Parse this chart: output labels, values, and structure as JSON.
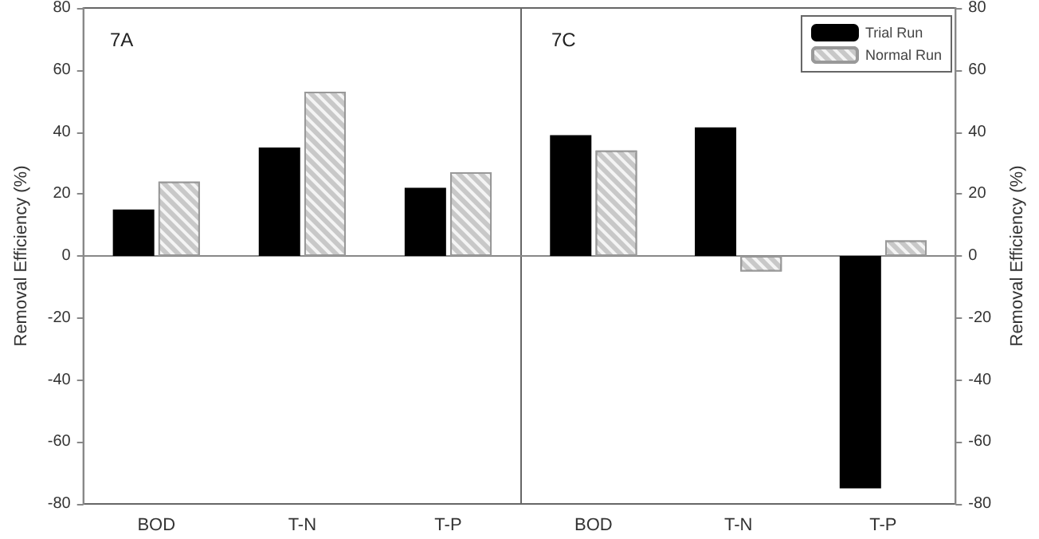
{
  "chart_data": [
    {
      "type": "bar",
      "title": "7A",
      "categories": [
        "BOD",
        "T-N",
        "T-P"
      ],
      "ylabel": "Removal Efficiency (%)",
      "ylim": [
        -80,
        80
      ],
      "yticks": [
        -80,
        -60,
        -40,
        -20,
        0,
        20,
        40,
        60,
        80
      ],
      "series": [
        {
          "color": "#000000",
          "values": [
            15,
            35,
            22
          ]
        },
        {
          "color": "#c8c8c8",
          "values": [
            24,
            53,
            27
          ]
        }
      ]
    },
    {
      "type": "bar",
      "title": "7C",
      "categories": [
        "BOD",
        "T-N",
        "T-P"
      ],
      "y2label": "Removal Efficiency (%)",
      "y2lim": [
        -80,
        80
      ],
      "y2ticks": [
        -80,
        -60,
        -40,
        -20,
        0,
        20,
        40,
        60,
        80
      ],
      "series": [
        {
          "name": "Trial Run",
          "color": "#000000",
          "values": [
            39,
            41.5,
            -75
          ],
          "axis": "y2"
        },
        {
          "name": "Normal Run",
          "color": "#c8c8c8",
          "values": [
            34,
            -5,
            5
          ],
          "axis": "y2"
        }
      ],
      "legend": "top right"
    }
  ]
}
